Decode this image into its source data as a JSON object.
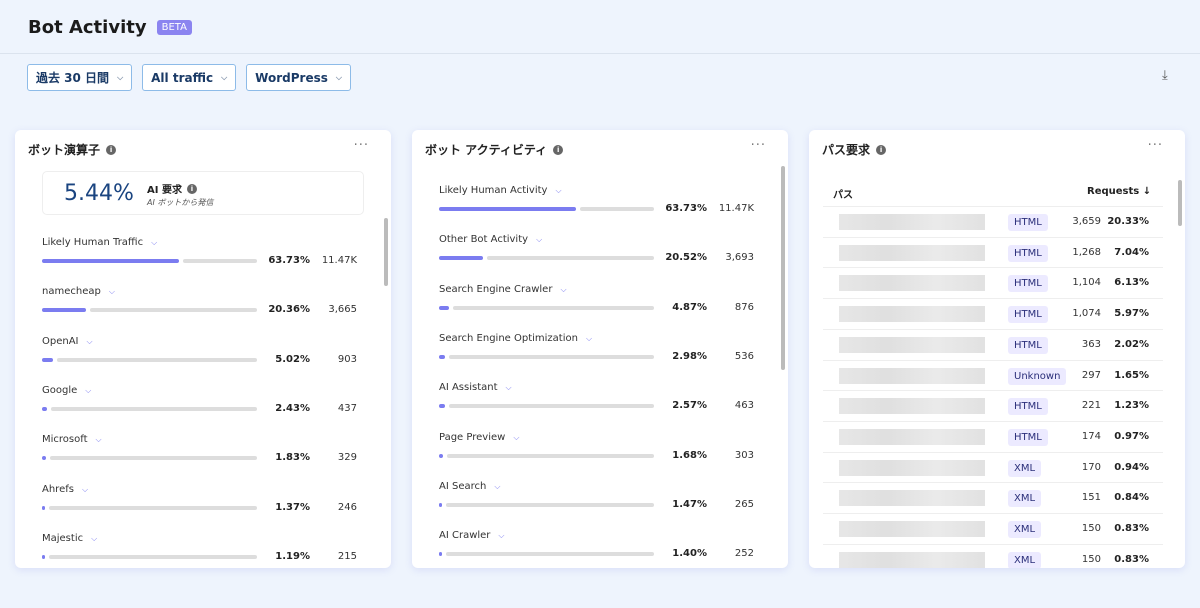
{
  "header": {
    "title": "Bot Activity",
    "badge": "BETA"
  },
  "filters": [
    {
      "label": "過去 30 日間"
    },
    {
      "label": "All traffic"
    },
    {
      "label": "WordPress"
    }
  ],
  "colors": {
    "accent": "#7b7cf0",
    "badge": "#8b84f0",
    "primary_text": "#1a4480"
  },
  "operators": {
    "title": "ボット演算子",
    "summary": {
      "value": "5.44%",
      "label": "AI 要求",
      "sublabel": "AI ボットから発信"
    },
    "items": [
      {
        "label": "Likely Human Traffic",
        "pct": "63.73%",
        "pct_value": 63.73,
        "count": "11.47K"
      },
      {
        "label": "namecheap",
        "pct": "20.36%",
        "pct_value": 20.36,
        "count": "3,665"
      },
      {
        "label": "OpenAI",
        "pct": "5.02%",
        "pct_value": 5.02,
        "count": "903"
      },
      {
        "label": "Google",
        "pct": "2.43%",
        "pct_value": 2.43,
        "count": "437"
      },
      {
        "label": "Microsoft",
        "pct": "1.83%",
        "pct_value": 1.83,
        "count": "329"
      },
      {
        "label": "Ahrefs",
        "pct": "1.37%",
        "pct_value": 1.37,
        "count": "246"
      },
      {
        "label": "Majestic",
        "pct": "1.19%",
        "pct_value": 1.19,
        "count": "215"
      }
    ]
  },
  "activity": {
    "title": "ボット アクティビティ",
    "items": [
      {
        "label": "Likely Human Activity",
        "pct": "63.73%",
        "pct_value": 63.73,
        "count": "11.47K"
      },
      {
        "label": "Other Bot Activity",
        "pct": "20.52%",
        "pct_value": 20.52,
        "count": "3,693"
      },
      {
        "label": "Search Engine Crawler",
        "pct": "4.87%",
        "pct_value": 4.87,
        "count": "876"
      },
      {
        "label": "Search Engine Optimization",
        "pct": "2.98%",
        "pct_value": 2.98,
        "count": "536"
      },
      {
        "label": "AI Assistant",
        "pct": "2.57%",
        "pct_value": 2.57,
        "count": "463"
      },
      {
        "label": "Page Preview",
        "pct": "1.68%",
        "pct_value": 1.68,
        "count": "303"
      },
      {
        "label": "AI Search",
        "pct": "1.47%",
        "pct_value": 1.47,
        "count": "265"
      },
      {
        "label": "AI Crawler",
        "pct": "1.40%",
        "pct_value": 1.4,
        "count": "252"
      }
    ]
  },
  "paths": {
    "title": "パス要求",
    "col_path": "パス",
    "col_requests": "Requests ↓",
    "rows": [
      {
        "type": "HTML",
        "requests": "3,659",
        "pct": "20.33%"
      },
      {
        "type": "HTML",
        "requests": "1,268",
        "pct": "7.04%"
      },
      {
        "type": "HTML",
        "requests": "1,104",
        "pct": "6.13%"
      },
      {
        "type": "HTML",
        "requests": "1,074",
        "pct": "5.97%"
      },
      {
        "type": "HTML",
        "requests": "363",
        "pct": "2.02%"
      },
      {
        "type": "Unknown",
        "requests": "297",
        "pct": "1.65%"
      },
      {
        "type": "HTML",
        "requests": "221",
        "pct": "1.23%"
      },
      {
        "type": "HTML",
        "requests": "174",
        "pct": "0.97%"
      },
      {
        "type": "XML",
        "requests": "170",
        "pct": "0.94%"
      },
      {
        "type": "XML",
        "requests": "151",
        "pct": "0.84%"
      },
      {
        "type": "XML",
        "requests": "150",
        "pct": "0.83%"
      },
      {
        "type": "XML",
        "requests": "150",
        "pct": "0.83%"
      }
    ]
  }
}
